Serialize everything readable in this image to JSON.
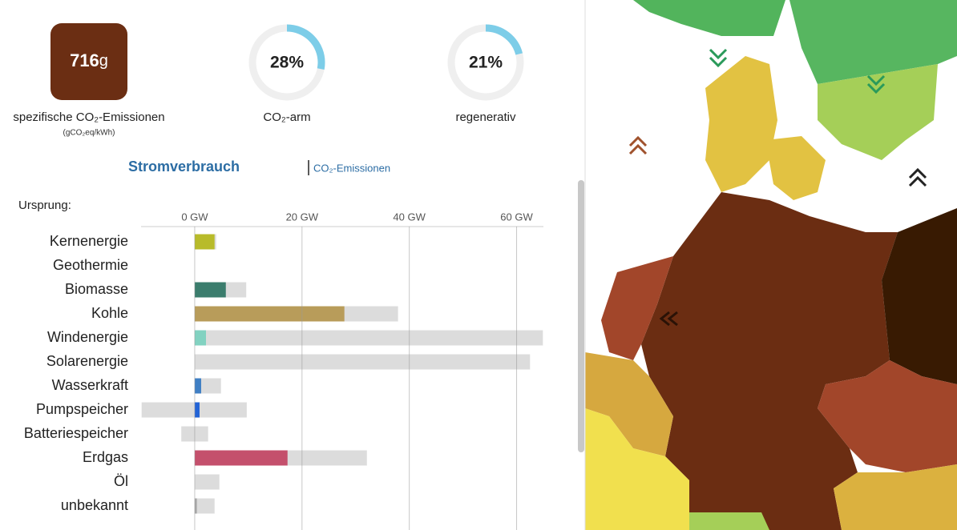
{
  "summary": {
    "intensity": {
      "value": "716",
      "unit": "g",
      "label": "spezifische CO₂-Emissionen",
      "sublabel": "(gCO₂eq/kWh)"
    },
    "low_carbon": {
      "value": 28,
      "label": "28%",
      "caption": "CO₂-arm"
    },
    "renewable": {
      "value": 21,
      "label": "21%",
      "caption": "regenerativ"
    }
  },
  "tabs": {
    "active": "Stromverbrauch",
    "other": "CO₂-Emissionen"
  },
  "chart_data": {
    "type": "bar",
    "orientation": "horizontal",
    "axis_title": "Ursprung:",
    "categories": [
      "Kernenergie",
      "Geothermie",
      "Biomasse",
      "Kohle",
      "Windenergie",
      "Solarenergie",
      "Wasserkraft",
      "Pumpspeicher",
      "Batteriespeicher",
      "Erdgas",
      "Öl",
      "unbekannt"
    ],
    "values": [
      3.7,
      0,
      5.8,
      27.9,
      2.1,
      0,
      1.2,
      0.9,
      0,
      17.3,
      0,
      0.4
    ],
    "capacity": [
      4.0,
      0,
      9.6,
      37.9,
      64.9,
      62.5,
      4.9,
      9.7,
      2.5,
      32.1,
      4.6,
      3.7
    ],
    "capacity_min": [
      0,
      0,
      0,
      0,
      0,
      0,
      0,
      -9.9,
      -2.5,
      0,
      0,
      0
    ],
    "colors": [
      "#b8bb2a",
      "#a0522d",
      "#3b7d6d",
      "#b89c5a",
      "#82d2c1",
      "#f5e66a",
      "#3f7fc4",
      "#2263d6",
      "#b0b0b0",
      "#c4506c",
      "#867d66",
      "#a6a6a6"
    ],
    "capacity_color": "#dcdcdc",
    "xlim": [
      -10,
      65
    ],
    "xticks": [
      {
        "value": 0,
        "label": "0 GW"
      },
      {
        "value": 20,
        "label": "20 GW"
      },
      {
        "value": 40,
        "label": "40 GW"
      },
      {
        "value": 60,
        "label": "60 GW"
      }
    ],
    "grid": true
  }
}
